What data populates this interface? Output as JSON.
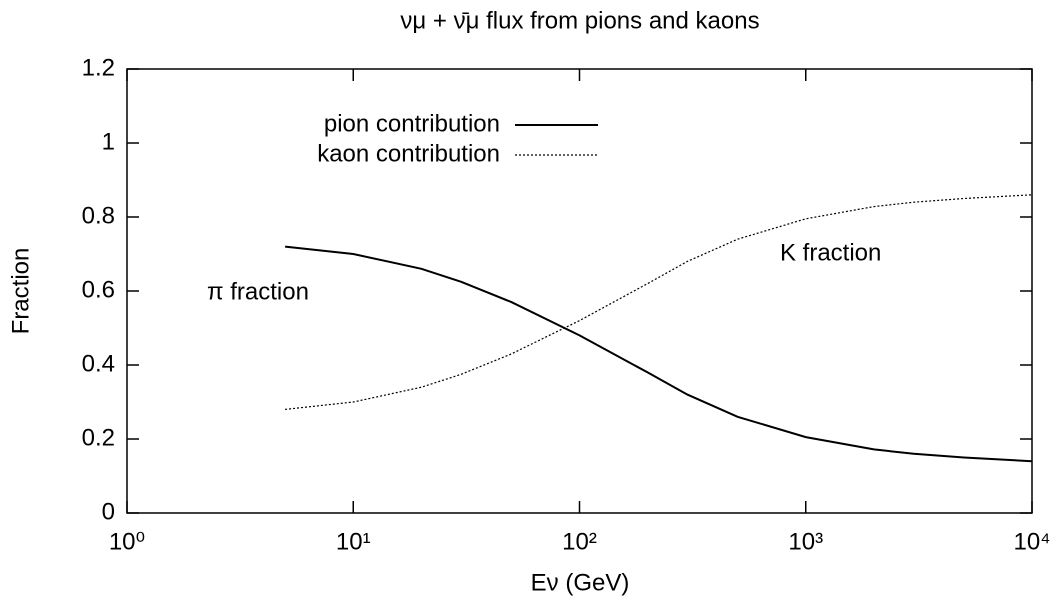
{
  "chart_data": {
    "type": "line",
    "title": "νμ + ν̄μ flux from pions and kaons",
    "x_label": "Eν (GeV)",
    "y_label": "Fraction",
    "x": [
      5,
      10,
      20,
      30,
      50,
      100,
      200,
      300,
      500,
      1000,
      2000,
      3000,
      5000,
      10000
    ],
    "series": [
      {
        "name": "pion contribution",
        "color": "#000000",
        "style": "solid",
        "values": [
          0.72,
          0.7,
          0.66,
          0.625,
          0.57,
          0.48,
          0.38,
          0.32,
          0.26,
          0.205,
          0.172,
          0.16,
          0.15,
          0.14
        ]
      },
      {
        "name": "kaon contribution",
        "color": "#000000",
        "style": "dotted",
        "values": [
          0.28,
          0.3,
          0.34,
          0.375,
          0.43,
          0.52,
          0.62,
          0.68,
          0.74,
          0.795,
          0.828,
          0.84,
          0.85,
          0.86
        ]
      }
    ],
    "annotations": [
      "π fraction",
      "K fraction"
    ],
    "xscale": "log",
    "xlim": [
      1,
      10000
    ],
    "xticks": [
      {
        "value": 1,
        "label": "10⁰"
      },
      {
        "value": 10,
        "label": "10¹"
      },
      {
        "value": 100,
        "label": "10²"
      },
      {
        "value": 1000,
        "label": "10³"
      },
      {
        "value": 10000,
        "label": "10⁴"
      }
    ],
    "ylim": [
      0,
      1.2
    ],
    "yticks": [
      0,
      0.2,
      0.4,
      0.6,
      0.8,
      1,
      1.2
    ],
    "grid": false,
    "legend": "top-left"
  }
}
